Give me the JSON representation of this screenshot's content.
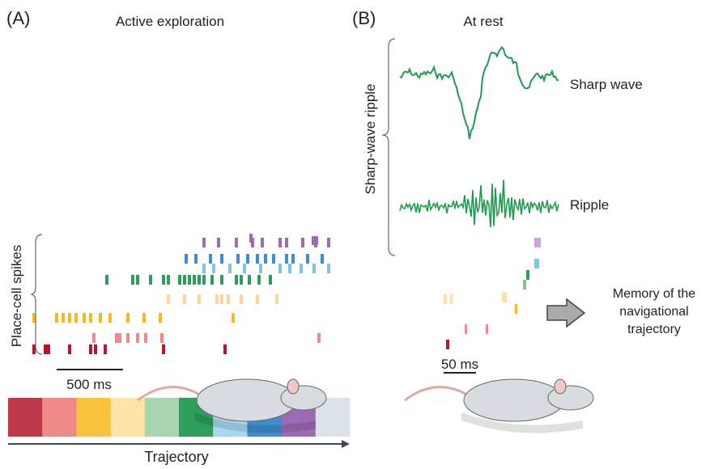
{
  "panel_a": {
    "label": "(A)",
    "title": "Active exploration",
    "y_label": "Place-cell spikes",
    "scale_bar": "500 ms",
    "x_label": "Trajectory"
  },
  "panel_b": {
    "label": "(B)",
    "title": "At rest",
    "y_label": "Sharp-wave ripple",
    "trace_labels": [
      "Sharp wave",
      "Ripple"
    ],
    "scale_bar": "50 ms",
    "memory_text": [
      "Memory of the",
      "navigational",
      "trajectory"
    ]
  }
}
